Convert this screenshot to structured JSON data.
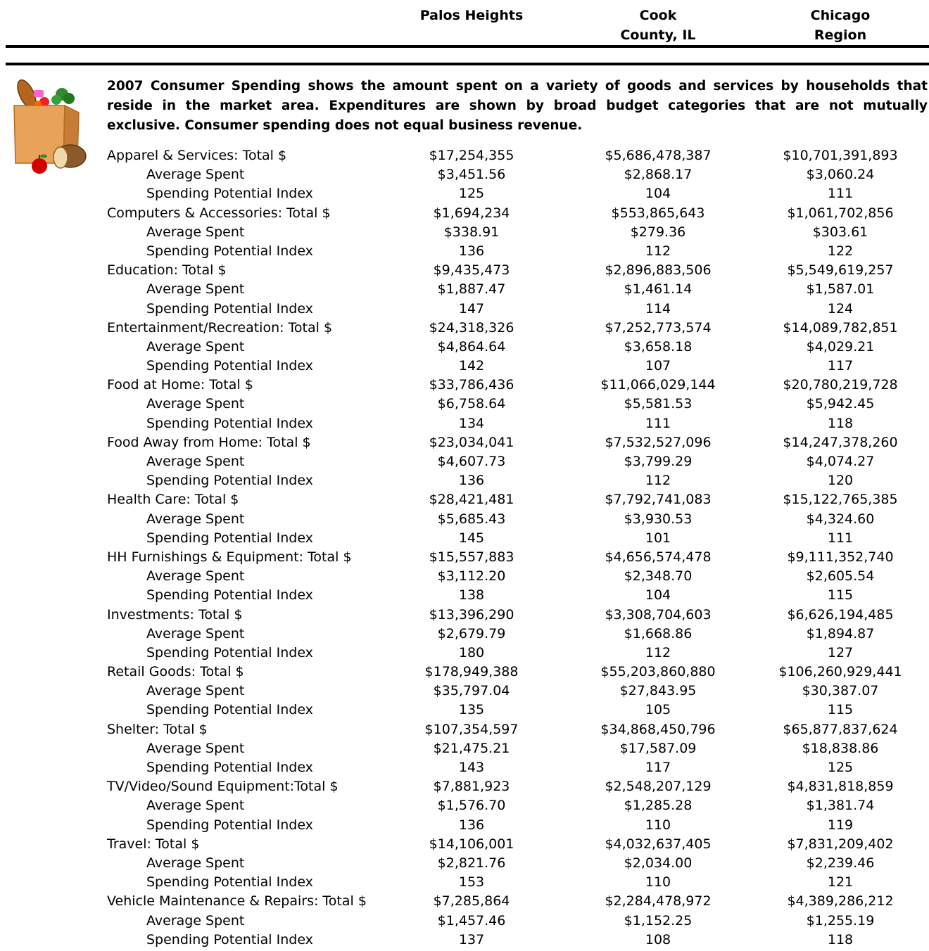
{
  "header": {
    "col1": [
      "Palos Heights"
    ],
    "col2": [
      "Cook",
      "County, IL"
    ],
    "col3": [
      "Chicago",
      "Region"
    ]
  },
  "intro": "2007 Consumer Spending shows the amount spent on a variety of goods and services by households that reside in the market area.  Expenditures are shown by broad budget categories that are not mutually exclusive.  Consumer spending does not equal business revenue.",
  "icon": "grocery-bag-icon",
  "sub_labels": {
    "avg": "Average Spent",
    "spi": "Spending Potential Index"
  },
  "categories": [
    {
      "label": "Apparel & Services:  Total $",
      "total": [
        "$17,254,355",
        "$5,686,478,387",
        "$10,701,391,893"
      ],
      "avg": [
        "$3,451.56",
        "$2,868.17",
        "$3,060.24"
      ],
      "spi": [
        "125",
        "104",
        "111"
      ]
    },
    {
      "label": "Computers & Accessories: Total $",
      "total": [
        "$1,694,234",
        "$553,865,643",
        "$1,061,702,856"
      ],
      "avg": [
        "$338.91",
        "$279.36",
        "$303.61"
      ],
      "spi": [
        "136",
        "112",
        "122"
      ]
    },
    {
      "label": "Education:  Total $",
      "total": [
        "$9,435,473",
        "$2,896,883,506",
        "$5,549,619,257"
      ],
      "avg": [
        "$1,887.47",
        "$1,461.14",
        "$1,587.01"
      ],
      "spi": [
        "147",
        "114",
        "124"
      ]
    },
    {
      "label": "Entertainment/Recreation:  Total $",
      "total": [
        "$24,318,326",
        "$7,252,773,574",
        "$14,089,782,851"
      ],
      "avg": [
        "$4,864.64",
        "$3,658.18",
        "$4,029.21"
      ],
      "spi": [
        "142",
        "107",
        "117"
      ]
    },
    {
      "label": "Food at Home:  Total $",
      "total": [
        "$33,786,436",
        "$11,066,029,144",
        "$20,780,219,728"
      ],
      "avg": [
        "$6,758.64",
        "$5,581.53",
        "$5,942.45"
      ],
      "spi": [
        "134",
        "111",
        "118"
      ]
    },
    {
      "label": "Food Away from Home:  Total $",
      "total": [
        "$23,034,041",
        "$7,532,527,096",
        "$14,247,378,260"
      ],
      "avg": [
        "$4,607.73",
        "$3,799.29",
        "$4,074.27"
      ],
      "spi": [
        "136",
        "112",
        "120"
      ]
    },
    {
      "label": "Health Care:  Total $",
      "total": [
        "$28,421,481",
        "$7,792,741,083",
        "$15,122,765,385"
      ],
      "avg": [
        "$5,685.43",
        "$3,930.53",
        "$4,324.60"
      ],
      "spi": [
        "145",
        "101",
        "111"
      ]
    },
    {
      "label": "HH Furnishings & Equipment:  Total $",
      "total": [
        "$15,557,883",
        "$4,656,574,478",
        "$9,111,352,740"
      ],
      "avg": [
        "$3,112.20",
        "$2,348.70",
        "$2,605.54"
      ],
      "spi": [
        "138",
        "104",
        "115"
      ]
    },
    {
      "label": "Investments:  Total $",
      "total": [
        "$13,396,290",
        "$3,308,704,603",
        "$6,626,194,485"
      ],
      "avg": [
        "$2,679.79",
        "$1,668.86",
        "$1,894.87"
      ],
      "spi": [
        "180",
        "112",
        "127"
      ]
    },
    {
      "label": "Retail Goods:  Total $",
      "total": [
        "$178,949,388",
        "$55,203,860,880",
        "$106,260,929,441"
      ],
      "avg": [
        "$35,797.04",
        "$27,843.95",
        "$30,387.07"
      ],
      "spi": [
        "135",
        "105",
        "115"
      ]
    },
    {
      "label": "Shelter:  Total $",
      "total": [
        "$107,354,597",
        "$34,868,450,796",
        "$65,877,837,624"
      ],
      "avg": [
        "$21,475.21",
        "$17,587.09",
        "$18,838.86"
      ],
      "spi": [
        "143",
        "117",
        "125"
      ]
    },
    {
      "label": "TV/Video/Sound Equipment:Total $",
      "total": [
        "$7,881,923",
        "$2,548,207,129",
        "$4,831,818,859"
      ],
      "avg": [
        "$1,576.70",
        "$1,285.28",
        "$1,381.74"
      ],
      "spi": [
        "136",
        "110",
        "119"
      ]
    },
    {
      "label": "Travel:  Total $",
      "total": [
        "$14,106,001",
        "$4,032,637,405",
        "$7,831,209,402"
      ],
      "avg": [
        "$2,821.76",
        "$2,034.00",
        "$2,239.46"
      ],
      "spi": [
        "153",
        "110",
        "121"
      ]
    },
    {
      "label": "Vehicle Maintenance & Repairs: Total $",
      "total": [
        "$7,285,864",
        "$2,284,478,972",
        "$4,389,286,212"
      ],
      "avg": [
        "$1,457.46",
        "$1,152.25",
        "$1,255.19"
      ],
      "spi": [
        "137",
        "108",
        "118"
      ]
    }
  ]
}
